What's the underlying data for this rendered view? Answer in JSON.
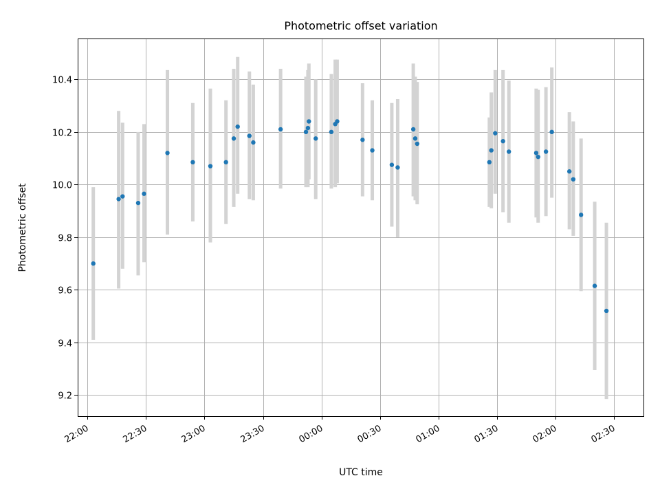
{
  "chart_data": {
    "type": "scatter",
    "title": "Photometric offset variation",
    "xlabel": "UTC time",
    "ylabel": "Photometric offset",
    "x_ticks": [
      "22:00",
      "22:30",
      "23:00",
      "23:30",
      "00:00",
      "00:30",
      "01:00",
      "01:30",
      "02:00",
      "02:30"
    ],
    "y_ticks": [
      "9.2",
      "9.4",
      "9.6",
      "9.8",
      "10.0",
      "10.2",
      "10.4"
    ],
    "xlim": [
      "21:55",
      "02:45"
    ],
    "ylim": [
      9.12,
      10.555
    ],
    "grid": true,
    "marker_color": "#1f77b4",
    "errorbar_color": "#d3d3d3",
    "points": [
      {
        "x": "22:03",
        "y": 9.7,
        "ylo": 9.41,
        "yhi": 9.99
      },
      {
        "x": "22:16",
        "y": 9.945,
        "ylo": 9.605,
        "yhi": 10.28
      },
      {
        "x": "22:18",
        "y": 9.955,
        "ylo": 9.68,
        "yhi": 10.235
      },
      {
        "x": "22:26",
        "y": 9.93,
        "ylo": 9.655,
        "yhi": 10.2
      },
      {
        "x": "22:29",
        "y": 9.965,
        "ylo": 9.705,
        "yhi": 10.23
      },
      {
        "x": "22:41",
        "y": 10.12,
        "ylo": 9.81,
        "yhi": 10.435
      },
      {
        "x": "22:54",
        "y": 10.085,
        "ylo": 9.86,
        "yhi": 10.31
      },
      {
        "x": "23:03",
        "y": 10.07,
        "ylo": 9.78,
        "yhi": 10.365
      },
      {
        "x": "23:11",
        "y": 10.085,
        "ylo": 9.85,
        "yhi": 10.32
      },
      {
        "x": "23:15",
        "y": 10.175,
        "ylo": 9.915,
        "yhi": 10.44
      },
      {
        "x": "23:17",
        "y": 10.22,
        "ylo": 9.965,
        "yhi": 10.485
      },
      {
        "x": "23:23",
        "y": 10.185,
        "ylo": 9.945,
        "yhi": 10.43
      },
      {
        "x": "23:25",
        "y": 10.16,
        "ylo": 9.94,
        "yhi": 10.38
      },
      {
        "x": "23:39",
        "y": 10.21,
        "ylo": 9.985,
        "yhi": 10.44
      },
      {
        "x": "23:52",
        "y": 10.2,
        "ylo": 9.99,
        "yhi": 10.41
      },
      {
        "x": "23:53",
        "y": 10.215,
        "ylo": 9.99,
        "yhi": 10.435
      },
      {
        "x": "23:53:30",
        "y": 10.24,
        "ylo": 10.02,
        "yhi": 10.46
      },
      {
        "x": "23:57",
        "y": 10.175,
        "ylo": 9.945,
        "yhi": 10.4
      },
      {
        "x": "00:05",
        "y": 10.2,
        "ylo": 9.985,
        "yhi": 10.42
      },
      {
        "x": "00:07",
        "y": 10.23,
        "ylo": 9.99,
        "yhi": 10.475
      },
      {
        "x": "00:08",
        "y": 10.24,
        "ylo": 10.005,
        "yhi": 10.475
      },
      {
        "x": "00:21",
        "y": 10.17,
        "ylo": 9.955,
        "yhi": 10.385
      },
      {
        "x": "00:26",
        "y": 10.13,
        "ylo": 9.94,
        "yhi": 10.32
      },
      {
        "x": "00:36",
        "y": 10.075,
        "ylo": 9.84,
        "yhi": 10.31
      },
      {
        "x": "00:39",
        "y": 10.065,
        "ylo": 9.8,
        "yhi": 10.325
      },
      {
        "x": "00:47",
        "y": 10.21,
        "ylo": 9.955,
        "yhi": 10.46
      },
      {
        "x": "00:48",
        "y": 10.175,
        "ylo": 9.94,
        "yhi": 10.41
      },
      {
        "x": "00:49",
        "y": 10.155,
        "ylo": 9.925,
        "yhi": 10.39
      },
      {
        "x": "01:26",
        "y": 10.085,
        "ylo": 9.915,
        "yhi": 10.255
      },
      {
        "x": "01:27",
        "y": 10.13,
        "ylo": 9.91,
        "yhi": 10.35
      },
      {
        "x": "01:29",
        "y": 10.195,
        "ylo": 9.965,
        "yhi": 10.435
      },
      {
        "x": "01:33",
        "y": 10.165,
        "ylo": 9.895,
        "yhi": 10.435
      },
      {
        "x": "01:36",
        "y": 10.125,
        "ylo": 9.855,
        "yhi": 10.395
      },
      {
        "x": "01:50",
        "y": 10.12,
        "ylo": 9.875,
        "yhi": 10.365
      },
      {
        "x": "01:51",
        "y": 10.105,
        "ylo": 9.855,
        "yhi": 10.36
      },
      {
        "x": "01:55",
        "y": 10.125,
        "ylo": 9.88,
        "yhi": 10.37
      },
      {
        "x": "01:58",
        "y": 10.2,
        "ylo": 9.95,
        "yhi": 10.445
      },
      {
        "x": "02:07",
        "y": 10.05,
        "ylo": 9.83,
        "yhi": 10.275
      },
      {
        "x": "02:09",
        "y": 10.02,
        "ylo": 9.805,
        "yhi": 10.24
      },
      {
        "x": "02:13",
        "y": 9.885,
        "ylo": 9.595,
        "yhi": 10.175
      },
      {
        "x": "02:20",
        "y": 9.615,
        "ylo": 9.295,
        "yhi": 9.935
      },
      {
        "x": "02:26",
        "y": 9.52,
        "ylo": 9.185,
        "yhi": 9.855
      }
    ]
  }
}
